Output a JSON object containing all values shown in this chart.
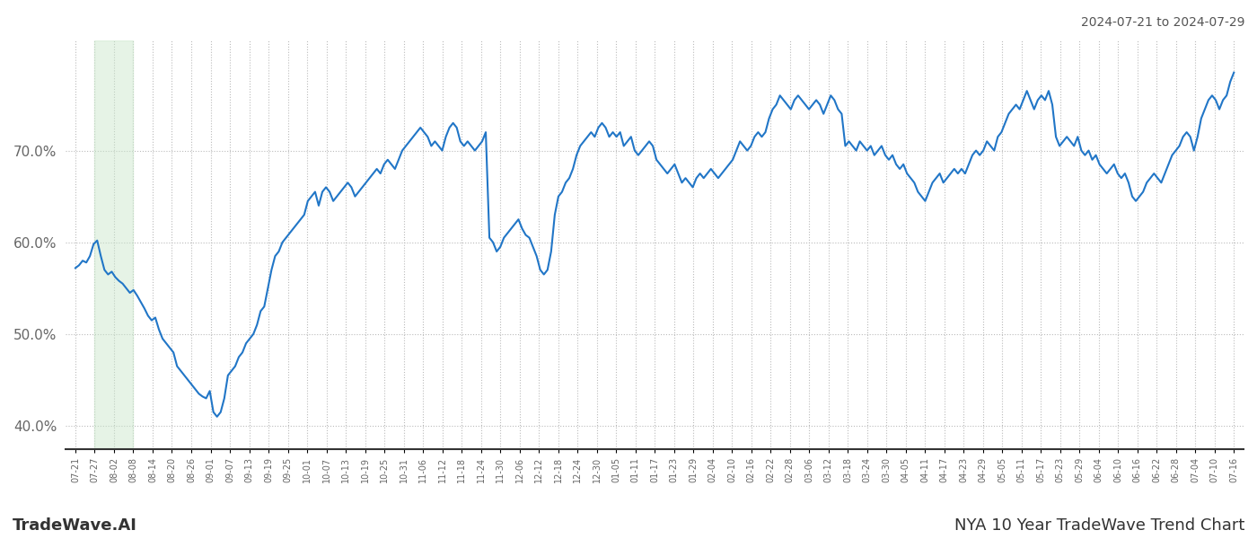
{
  "title_top_right": "2024-07-21 to 2024-07-29",
  "title_bottom_left": "TradeWave.AI",
  "title_bottom_right": "NYA 10 Year TradeWave Trend Chart",
  "line_color": "#2176c7",
  "line_width": 1.5,
  "shade_color": "#c8e6c9",
  "shade_alpha": 0.45,
  "shade_x_start_label": "07-27",
  "shade_x_end_label": "08-08",
  "background_color": "#ffffff",
  "grid_color": "#bbbbbb",
  "ylim": [
    37.5,
    82.0
  ],
  "yticks": [
    40.0,
    50.0,
    60.0,
    70.0
  ],
  "x_labels": [
    "07-21",
    "07-27",
    "08-02",
    "08-08",
    "08-14",
    "08-20",
    "08-26",
    "09-01",
    "09-07",
    "09-13",
    "09-19",
    "09-25",
    "10-01",
    "10-07",
    "10-13",
    "10-19",
    "10-25",
    "10-31",
    "11-06",
    "11-12",
    "11-18",
    "11-24",
    "11-30",
    "12-06",
    "12-12",
    "12-18",
    "12-24",
    "12-30",
    "01-05",
    "01-11",
    "01-17",
    "01-23",
    "01-29",
    "02-04",
    "02-10",
    "02-16",
    "02-22",
    "02-28",
    "03-06",
    "03-12",
    "03-18",
    "03-24",
    "03-30",
    "04-05",
    "04-11",
    "04-17",
    "04-23",
    "04-29",
    "05-05",
    "05-11",
    "05-17",
    "05-23",
    "05-29",
    "06-04",
    "06-10",
    "06-16",
    "06-22",
    "06-28",
    "07-04",
    "07-10",
    "07-16"
  ],
  "values": [
    57.2,
    57.5,
    58.0,
    57.8,
    58.5,
    59.8,
    60.2,
    58.5,
    57.0,
    56.5,
    56.8,
    56.2,
    55.8,
    55.5,
    55.0,
    54.5,
    54.8,
    54.2,
    53.5,
    52.8,
    52.0,
    51.5,
    51.8,
    50.5,
    49.5,
    49.0,
    48.5,
    48.0,
    46.5,
    46.0,
    45.5,
    45.0,
    44.5,
    44.0,
    43.5,
    43.2,
    43.0,
    43.8,
    41.5,
    41.0,
    41.5,
    43.0,
    45.5,
    46.0,
    46.5,
    47.5,
    48.0,
    49.0,
    49.5,
    50.0,
    51.0,
    52.5,
    53.0,
    55.0,
    57.0,
    58.5,
    59.0,
    60.0,
    60.5,
    61.0,
    61.5,
    62.0,
    62.5,
    63.0,
    64.5,
    65.0,
    65.5,
    64.0,
    65.5,
    66.0,
    65.5,
    64.5,
    65.0,
    65.5,
    66.0,
    66.5,
    66.0,
    65.0,
    65.5,
    66.0,
    66.5,
    67.0,
    67.5,
    68.0,
    67.5,
    68.5,
    69.0,
    68.5,
    68.0,
    69.0,
    70.0,
    70.5,
    71.0,
    71.5,
    72.0,
    72.5,
    72.0,
    71.5,
    70.5,
    71.0,
    70.5,
    70.0,
    71.5,
    72.5,
    73.0,
    72.5,
    71.0,
    70.5,
    71.0,
    70.5,
    70.0,
    70.5,
    71.0,
    72.0,
    60.5,
    60.0,
    59.0,
    59.5,
    60.5,
    61.0,
    61.5,
    62.0,
    62.5,
    61.5,
    60.8,
    60.5,
    59.5,
    58.5,
    57.0,
    56.5,
    57.0,
    59.0,
    63.0,
    65.0,
    65.5,
    66.5,
    67.0,
    68.0,
    69.5,
    70.5,
    71.0,
    71.5,
    72.0,
    71.5,
    72.5,
    73.0,
    72.5,
    71.5,
    72.0,
    71.5,
    72.0,
    70.5,
    71.0,
    71.5,
    70.0,
    69.5,
    70.0,
    70.5,
    71.0,
    70.5,
    69.0,
    68.5,
    68.0,
    67.5,
    68.0,
    68.5,
    67.5,
    66.5,
    67.0,
    66.5,
    66.0,
    67.0,
    67.5,
    67.0,
    67.5,
    68.0,
    67.5,
    67.0,
    67.5,
    68.0,
    68.5,
    69.0,
    70.0,
    71.0,
    70.5,
    70.0,
    70.5,
    71.5,
    72.0,
    71.5,
    72.0,
    73.5,
    74.5,
    75.0,
    76.0,
    75.5,
    75.0,
    74.5,
    75.5,
    76.0,
    75.5,
    75.0,
    74.5,
    75.0,
    75.5,
    75.0,
    74.0,
    75.0,
    76.0,
    75.5,
    74.5,
    74.0,
    70.5,
    71.0,
    70.5,
    70.0,
    71.0,
    70.5,
    70.0,
    70.5,
    69.5,
    70.0,
    70.5,
    69.5,
    69.0,
    69.5,
    68.5,
    68.0,
    68.5,
    67.5,
    67.0,
    66.5,
    65.5,
    65.0,
    64.5,
    65.5,
    66.5,
    67.0,
    67.5,
    66.5,
    67.0,
    67.5,
    68.0,
    67.5,
    68.0,
    67.5,
    68.5,
    69.5,
    70.0,
    69.5,
    70.0,
    71.0,
    70.5,
    70.0,
    71.5,
    72.0,
    73.0,
    74.0,
    74.5,
    75.0,
    74.5,
    75.5,
    76.5,
    75.5,
    74.5,
    75.5,
    76.0,
    75.5,
    76.5,
    75.0,
    71.5,
    70.5,
    71.0,
    71.5,
    71.0,
    70.5,
    71.5,
    70.0,
    69.5,
    70.0,
    69.0,
    69.5,
    68.5,
    68.0,
    67.5,
    68.0,
    68.5,
    67.5,
    67.0,
    67.5,
    66.5,
    65.0,
    64.5,
    65.0,
    65.5,
    66.5,
    67.0,
    67.5,
    67.0,
    66.5,
    67.5,
    68.5,
    69.5,
    70.0,
    70.5,
    71.5,
    72.0,
    71.5,
    70.0,
    71.5,
    73.5,
    74.5,
    75.5,
    76.0,
    75.5,
    74.5,
    75.5,
    76.0,
    77.5,
    78.5
  ]
}
